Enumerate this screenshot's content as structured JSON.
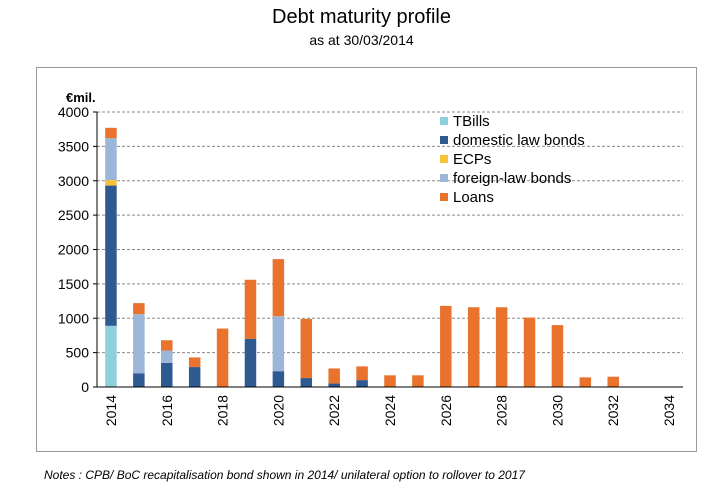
{
  "chart_data": {
    "type": "bar",
    "stacked": true,
    "title": "Debt maturity profile",
    "subtitle": "as at 30/03/2014",
    "ylabel": "€mil.",
    "ylim": [
      0,
      4000
    ],
    "yticks": [
      "0",
      "500",
      "1000",
      "1500",
      "2000",
      "2500",
      "3000",
      "3500",
      "4000"
    ],
    "ytick_values": [
      0,
      500,
      1000,
      1500,
      2000,
      2500,
      3000,
      3500,
      4000
    ],
    "categories": [
      "2014",
      "2015",
      "2016",
      "2017",
      "2018",
      "2019",
      "2020",
      "2021",
      "2022",
      "2023",
      "2024",
      "2025",
      "2026",
      "2027",
      "2028",
      "2029",
      "2030",
      "2031",
      "2032",
      "2033",
      "2034"
    ],
    "xtick_labels": [
      "2014",
      "2016",
      "2018",
      "2020",
      "2022",
      "2024",
      "2026",
      "2028",
      "2030",
      "2032",
      "2034"
    ],
    "grid": true,
    "legend_position": "top-right",
    "series": [
      {
        "name": "TBills",
        "color": "#8ecfdc",
        "values": [
          890,
          0,
          0,
          0,
          0,
          0,
          0,
          0,
          0,
          0,
          0,
          0,
          0,
          0,
          0,
          0,
          0,
          0,
          0,
          0,
          0
        ]
      },
      {
        "name": "domestic law bonds",
        "color": "#2f5a91",
        "values": [
          2040,
          200,
          350,
          290,
          0,
          700,
          230,
          130,
          50,
          100,
          0,
          0,
          0,
          0,
          0,
          0,
          0,
          0,
          0,
          0,
          0
        ]
      },
      {
        "name": "ECPs",
        "color": "#f7c23a",
        "values": [
          80,
          0,
          0,
          0,
          0,
          0,
          0,
          0,
          0,
          0,
          0,
          0,
          0,
          0,
          0,
          0,
          0,
          0,
          0,
          0,
          0
        ]
      },
      {
        "name": "foreign-law bonds",
        "color": "#9bb6d9",
        "values": [
          610,
          860,
          180,
          0,
          0,
          0,
          800,
          0,
          0,
          0,
          0,
          0,
          0,
          0,
          0,
          0,
          0,
          0,
          0,
          0,
          0
        ]
      },
      {
        "name": "Loans",
        "color": "#e9722c",
        "values": [
          150,
          160,
          150,
          140,
          850,
          860,
          830,
          860,
          220,
          200,
          170,
          170,
          1180,
          1160,
          1160,
          1010,
          900,
          140,
          150,
          0,
          0
        ]
      }
    ]
  },
  "notes": "Notes : CPB/ BoC recapitalisation  bond shown in 2014/ unilateral option to rollover to 2017"
}
